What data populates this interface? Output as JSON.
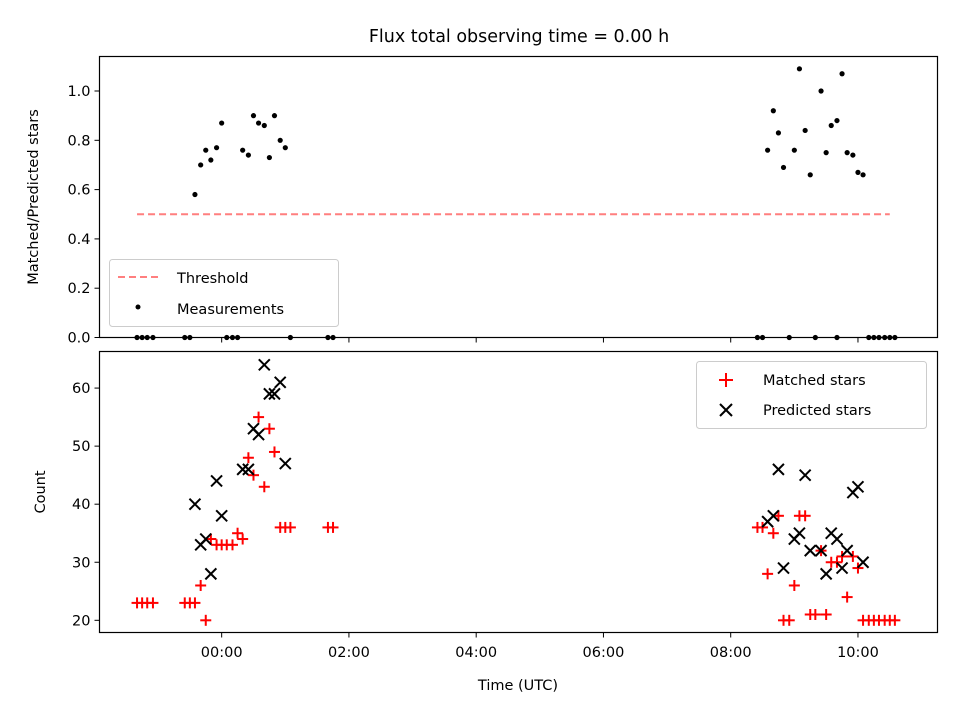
{
  "title": "Flux total observing time = 0.00 h",
  "chart_data": [
    {
      "type": "scatter",
      "ylabel": "Matched/Predicted stars",
      "ylim": [
        0,
        1.14
      ],
      "yticks": [
        "0.0",
        "0.2",
        "0.4",
        "0.6",
        "0.8",
        "1.0"
      ],
      "ytick_values": [
        0,
        0.2,
        0.4,
        0.6,
        0.8,
        1.0
      ],
      "legend_position": "lower-left",
      "threshold": {
        "name": "Threshold",
        "value": 0.5,
        "x_start": -1.33,
        "x_end": 10.5,
        "color": "#ff7f7f"
      },
      "series": [
        {
          "name": "Measurements",
          "color": "#000000",
          "x": [
            -0.42,
            -0.33,
            -0.25,
            -0.17,
            -0.08,
            0.0,
            0.33,
            0.42,
            0.5,
            0.58,
            0.67,
            0.75,
            0.83,
            0.92,
            1.0,
            8.58,
            8.67,
            8.75,
            8.83,
            9.0,
            9.08,
            9.17,
            9.25,
            9.42,
            9.5,
            9.58,
            9.67,
            9.75,
            9.83,
            9.92,
            10.0,
            10.08,
            -1.33,
            -1.25,
            -1.17,
            -1.08,
            -0.58,
            -0.5,
            0.08,
            0.17,
            0.25,
            1.08,
            1.67,
            1.75,
            8.42,
            8.5,
            8.92,
            9.33,
            9.67,
            10.17,
            10.25,
            10.33,
            10.42,
            10.5,
            10.58
          ],
          "y": [
            0.58,
            0.7,
            0.76,
            0.72,
            0.77,
            0.87,
            0.76,
            0.74,
            0.9,
            0.87,
            0.86,
            0.73,
            0.9,
            0.8,
            0.77,
            0.76,
            0.92,
            0.83,
            0.69,
            0.76,
            1.09,
            0.84,
            0.66,
            1.0,
            0.75,
            0.86,
            0.88,
            1.07,
            0.75,
            0.74,
            0.67,
            0.66,
            0,
            0,
            0,
            0,
            0,
            0,
            0,
            0,
            0,
            0,
            0,
            0,
            0,
            0,
            0,
            0,
            0,
            0,
            0,
            0,
            0,
            0,
            0
          ]
        }
      ]
    },
    {
      "type": "scatter",
      "xlabel": "Time (UTC)",
      "ylabel": "Count",
      "ylim": [
        17.9,
        66.3
      ],
      "xlim": [
        -1.92,
        11.25
      ],
      "yticks": [
        "20",
        "30",
        "40",
        "50",
        "60"
      ],
      "ytick_values": [
        20,
        30,
        40,
        50,
        60
      ],
      "xticks": [
        "00:00",
        "02:00",
        "04:00",
        "06:00",
        "08:00",
        "10:00"
      ],
      "xtick_values": [
        0,
        2,
        4,
        6,
        8,
        10
      ],
      "legend_position": "upper-right",
      "series": [
        {
          "name": "Matched stars",
          "marker": "+",
          "color": "#ff0000",
          "x": [
            -1.33,
            -1.25,
            -1.17,
            -1.08,
            -0.58,
            -0.5,
            -0.42,
            -0.33,
            -0.25,
            -0.17,
            -0.08,
            0.0,
            0.08,
            0.17,
            0.25,
            0.33,
            0.42,
            0.5,
            0.58,
            0.67,
            0.75,
            0.83,
            0.92,
            1.0,
            1.08,
            1.67,
            1.75,
            8.42,
            8.5,
            8.58,
            8.67,
            8.75,
            8.83,
            8.92,
            9.0,
            9.08,
            9.17,
            9.25,
            9.33,
            9.42,
            9.5,
            9.58,
            9.67,
            9.75,
            9.83,
            9.92,
            10.0,
            10.08,
            10.17,
            10.25,
            10.33,
            10.42,
            10.5,
            10.58
          ],
          "y": [
            23,
            23,
            23,
            23,
            23,
            23,
            23,
            26,
            20,
            34,
            33,
            33,
            33,
            33,
            35,
            34,
            48,
            45,
            55,
            43,
            53,
            49,
            36,
            36,
            36,
            36,
            36,
            36,
            36,
            28,
            35,
            38,
            20,
            20,
            26,
            38,
            38,
            21,
            21,
            32,
            21,
            30,
            30,
            31,
            24,
            31,
            29,
            20,
            20,
            20,
            20,
            20,
            20,
            20
          ]
        },
        {
          "name": "Predicted stars",
          "marker": "x",
          "color": "#000000",
          "x": [
            -0.42,
            -0.33,
            -0.25,
            -0.17,
            -0.08,
            0.0,
            0.33,
            0.42,
            0.5,
            0.58,
            0.67,
            0.75,
            0.83,
            0.92,
            1.0,
            8.58,
            8.67,
            8.75,
            8.83,
            9.0,
            9.08,
            9.17,
            9.25,
            9.42,
            9.5,
            9.58,
            9.67,
            9.75,
            9.83,
            9.92,
            10.0,
            10.08
          ],
          "y": [
            40,
            33,
            34,
            28,
            44,
            38,
            46,
            46,
            53,
            52,
            64,
            59,
            59,
            61,
            47,
            37,
            38,
            46,
            29,
            34,
            35,
            45,
            32,
            32,
            28,
            35,
            34,
            29,
            32,
            42,
            43,
            30
          ]
        }
      ]
    }
  ]
}
